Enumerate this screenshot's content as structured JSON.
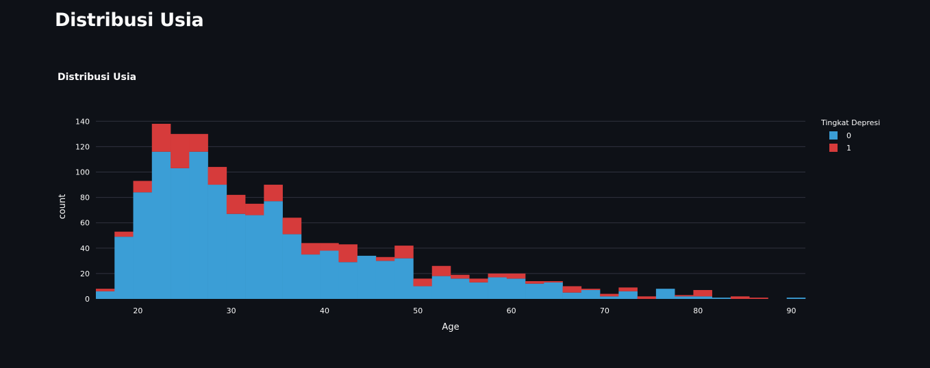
{
  "page": {
    "title": "Distribusi Usia"
  },
  "colors": {
    "background": "#0e1117",
    "series_0": "#3b9ed6",
    "series_1": "#d63b3b",
    "grid": "#31333f",
    "text": "#fafafa"
  },
  "chart_data": {
    "type": "bar",
    "title": "Distribusi Usia",
    "xlabel": "Age",
    "ylabel": "count",
    "xlim": [
      15.5,
      91.5
    ],
    "ylim": [
      0,
      145
    ],
    "x_ticks": [
      20,
      30,
      40,
      50,
      60,
      70,
      80,
      90
    ],
    "y_ticks": [
      0,
      20,
      40,
      60,
      80,
      100,
      120,
      140
    ],
    "grid": true,
    "stacked": true,
    "bin_width": 2,
    "bin_starts": [
      15.5,
      17.5,
      19.5,
      21.5,
      23.5,
      25.5,
      27.5,
      29.5,
      31.5,
      33.5,
      35.5,
      37.5,
      39.5,
      41.5,
      43.5,
      45.5,
      47.5,
      49.5,
      51.5,
      53.5,
      55.5,
      57.5,
      59.5,
      61.5,
      63.5,
      65.5,
      67.5,
      69.5,
      71.5,
      73.5,
      75.5,
      77.5,
      79.5,
      81.5,
      83.5,
      85.5,
      87.5,
      89.5
    ],
    "legend": {
      "title": "Tingkat Depresi",
      "position": "right"
    },
    "series": [
      {
        "name": "0",
        "values": [
          6,
          49,
          84,
          116,
          103,
          116,
          90,
          67,
          66,
          77,
          51,
          35,
          38,
          29,
          34,
          30,
          32,
          10,
          18,
          16,
          13,
          17,
          16,
          12,
          13,
          5,
          7,
          2,
          6,
          0,
          8,
          2,
          2,
          1,
          0,
          0,
          0,
          1
        ]
      },
      {
        "name": "1",
        "values": [
          2,
          4,
          9,
          22,
          27,
          14,
          14,
          15,
          9,
          13,
          13,
          9,
          6,
          14,
          0,
          3,
          10,
          6,
          8,
          3,
          3,
          3,
          4,
          2,
          1,
          5,
          1,
          2,
          3,
          2,
          0,
          1,
          5,
          0,
          2,
          1,
          0,
          0
        ]
      }
    ]
  }
}
